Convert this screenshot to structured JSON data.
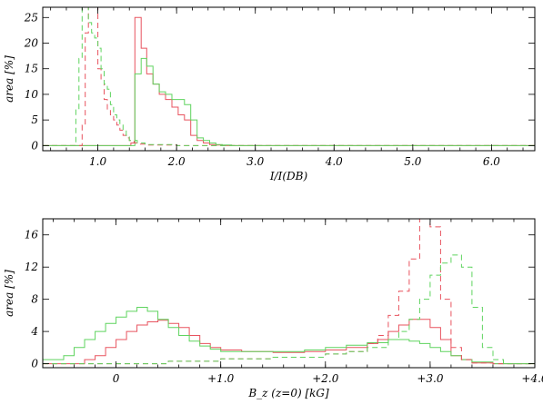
{
  "chart_data": [
    {
      "type": "line",
      "step": true,
      "xlabel": "I/I(DB)",
      "ylabel": "area [%]",
      "xlim": [
        0.3,
        6.55
      ],
      "ylim": [
        -1,
        27
      ],
      "xticks": [
        1.0,
        2.0,
        3.0,
        4.0,
        5.0,
        6.0
      ],
      "xtick_labels": [
        "1.0",
        "2.0",
        "3.0",
        "4.0",
        "5.0",
        "6.0"
      ],
      "yticks": [
        0,
        5,
        10,
        15,
        20,
        25
      ],
      "ytick_labels": [
        "0",
        "5",
        "10",
        "15",
        "20",
        "25"
      ],
      "series": [
        {
          "color": "#e8535f",
          "style": "solid",
          "x": [
            0.3,
            1.36,
            1.42,
            1.47,
            1.55,
            1.62,
            1.7,
            1.78,
            1.86,
            1.94,
            2.02,
            2.1,
            2.18,
            2.26,
            2.34,
            2.42,
            2.5,
            2.58,
            2.7,
            6.55
          ],
          "y": [
            0,
            0,
            0.5,
            25,
            19,
            14,
            12,
            10,
            9,
            7.5,
            6,
            5,
            2,
            1,
            0.5,
            0.2,
            0.1,
            0,
            0,
            0
          ]
        },
        {
          "color": "#5fd45f",
          "style": "solid",
          "x": [
            0.3,
            1.42,
            1.47,
            1.55,
            1.62,
            1.7,
            1.78,
            1.86,
            1.94,
            2.02,
            2.1,
            2.18,
            2.26,
            2.34,
            2.42,
            2.5,
            2.58,
            2.7,
            2.8,
            6.55
          ],
          "y": [
            0,
            0,
            14,
            17,
            15.5,
            12,
            10.5,
            10,
            9,
            9,
            8,
            5,
            1.5,
            1,
            0.5,
            0.2,
            0.1,
            0,
            0,
            0
          ]
        },
        {
          "color": "#e8535f",
          "style": "dashed",
          "x": [
            0.3,
            0.76,
            0.8,
            0.84,
            0.88,
            0.92,
            0.96,
            1.0,
            1.04,
            1.08,
            1.12,
            1.16,
            1.2,
            1.24,
            1.28,
            1.32,
            1.36,
            1.4,
            1.46,
            1.5,
            1.6,
            2.0,
            2.5,
            6.55
          ],
          "y": [
            0,
            0,
            4,
            22,
            27,
            27,
            27,
            15,
            13,
            9,
            7,
            6,
            5,
            4,
            3,
            2,
            1.5,
            1,
            0.5,
            0.3,
            0.1,
            0,
            0,
            0
          ]
        },
        {
          "color": "#5fd45f",
          "style": "dashed",
          "x": [
            0.3,
            0.68,
            0.72,
            0.76,
            0.8,
            0.84,
            0.88,
            0.92,
            0.96,
            1.0,
            1.04,
            1.08,
            1.12,
            1.16,
            1.2,
            1.24,
            1.28,
            1.32,
            1.36,
            1.4,
            1.5,
            1.6,
            2.0,
            6.55
          ],
          "y": [
            0,
            0,
            7,
            17,
            27,
            27,
            24,
            22,
            21,
            19,
            15,
            12,
            11,
            8,
            6,
            5,
            4,
            3,
            2,
            1,
            0.5,
            0.2,
            0,
            0
          ]
        }
      ]
    },
    {
      "type": "line",
      "step": true,
      "xlabel": "B_z (z=0) [kG]",
      "ylabel": "area [%]",
      "xlim": [
        -0.7,
        4.0
      ],
      "ylim": [
        -0.5,
        18
      ],
      "xticks": [
        0.0,
        1.0,
        2.0,
        3.0,
        4.0
      ],
      "xtick_labels": [
        "0",
        "+1.0",
        "+2.0",
        "+3.0",
        "+4.0"
      ],
      "yticks": [
        0,
        4,
        8,
        12,
        16
      ],
      "ytick_labels": [
        "0",
        "4",
        "8",
        "12",
        "16"
      ],
      "series": [
        {
          "color": "#e8535f",
          "style": "solid",
          "x": [
            -0.7,
            -0.3,
            -0.2,
            -0.1,
            0.0,
            0.1,
            0.2,
            0.3,
            0.4,
            0.5,
            0.6,
            0.7,
            0.8,
            0.9,
            1.0,
            1.2,
            1.5,
            1.8,
            2.0,
            2.2,
            2.4,
            2.5,
            2.6,
            2.7,
            2.8,
            2.9,
            3.0,
            3.1,
            3.2,
            3.3,
            3.4,
            3.6,
            4.0
          ],
          "y": [
            0,
            0.5,
            1,
            2,
            3,
            4,
            4.8,
            5.2,
            5.4,
            5,
            4.5,
            3.5,
            2.5,
            2,
            1.7,
            1.5,
            1.4,
            1.5,
            1.7,
            2,
            2.5,
            3,
            4,
            4.8,
            5.5,
            5.5,
            4.5,
            3,
            1,
            0.5,
            0.1,
            0,
            0
          ]
        },
        {
          "color": "#5fd45f",
          "style": "solid",
          "x": [
            -0.7,
            -0.5,
            -0.4,
            -0.3,
            -0.2,
            -0.1,
            0.0,
            0.1,
            0.2,
            0.3,
            0.4,
            0.5,
            0.6,
            0.7,
            0.8,
            0.9,
            1.0,
            1.2,
            1.5,
            1.8,
            2.0,
            2.2,
            2.4,
            2.6,
            2.8,
            2.9,
            3.0,
            3.1,
            3.2,
            3.3,
            3.4,
            3.6,
            4.0
          ],
          "y": [
            0.5,
            1,
            2,
            3,
            4,
            5,
            5.8,
            6.5,
            7,
            6.5,
            5.5,
            4.5,
            3.5,
            2.8,
            2.2,
            1.8,
            1.5,
            1.5,
            1.5,
            1.7,
            2,
            2.3,
            2.6,
            3,
            2.8,
            2.5,
            2,
            1.5,
            1,
            0.5,
            0.2,
            0,
            0
          ]
        },
        {
          "color": "#e8535f",
          "style": "dashed",
          "x": [
            -0.7,
            0.0,
            0.5,
            1.0,
            1.5,
            2.0,
            2.2,
            2.4,
            2.5,
            2.6,
            2.7,
            2.8,
            2.9,
            3.0,
            3.1,
            3.2,
            3.3,
            3.4,
            3.6,
            4.0
          ],
          "y": [
            0,
            0,
            0.3,
            0.6,
            0.8,
            1.2,
            1.5,
            2.5,
            3.5,
            6,
            9,
            13,
            18,
            17,
            8,
            2,
            0.5,
            0.1,
            0,
            0
          ]
        },
        {
          "color": "#5fd45f",
          "style": "dashed",
          "x": [
            -0.7,
            0.0,
            0.5,
            1.0,
            1.5,
            2.0,
            2.2,
            2.4,
            2.6,
            2.7,
            2.8,
            2.9,
            3.0,
            3.1,
            3.2,
            3.3,
            3.4,
            3.5,
            3.6,
            3.7,
            4.0
          ],
          "y": [
            0,
            0,
            0.3,
            0.6,
            0.8,
            1.2,
            1.5,
            2,
            3,
            4,
            5.5,
            8,
            11,
            12.5,
            13.5,
            12,
            7,
            2,
            0.5,
            0,
            0
          ]
        }
      ]
    }
  ]
}
